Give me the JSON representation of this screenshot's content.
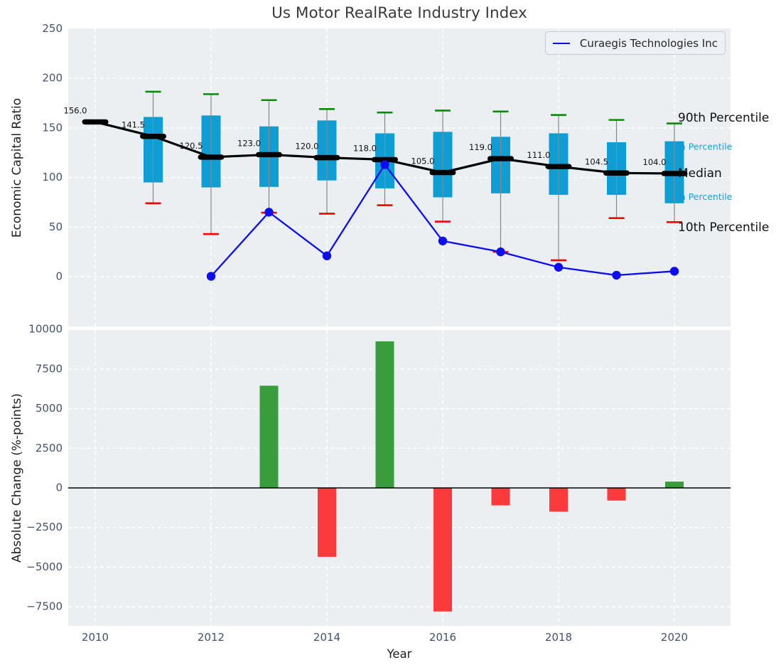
{
  "figure": {
    "title": "Us Motor RealRate Industry Index",
    "background": "#ffffff",
    "plot_background": "#eceff1"
  },
  "colors": {
    "box_fill": "#0f9ed3",
    "whisker": "#888888",
    "cap_top": "#0c8a0c",
    "cap_bottom": "#f80000",
    "median": "#000000",
    "company_line": "#0d0df0",
    "gridline": "#ffffff",
    "tick_label": "#44536b",
    "bar_positive": "#3a9d3b",
    "bar_negative": "#fb3b3b",
    "zero_line": "#000000",
    "percentile_label_small": "#18a0d8",
    "percentile_label_large": "#111111"
  },
  "legend": {
    "label": "Curaegis Technologies Inc"
  },
  "chart_data": [
    {
      "type": "box",
      "title": "Us Motor RealRate Industry Index",
      "ylabel": "Economic Capital Ratio",
      "ylim": [
        -50,
        250
      ],
      "yticks": [
        0,
        50,
        100,
        150,
        200,
        250
      ],
      "grid": true,
      "legend_position": "upper right",
      "years": [
        2010,
        2011,
        2012,
        2013,
        2014,
        2015,
        2016,
        2017,
        2018,
        2019,
        2020
      ],
      "median": [
        156.0,
        141.5,
        120.5,
        123.0,
        120.0,
        118.0,
        105.0,
        119.0,
        111.0,
        104.5,
        104.0
      ],
      "median_labels": [
        "156.0",
        "141.5",
        "120.5",
        "123.0",
        "120.0",
        "118.0",
        "105.0",
        "119.0",
        "111.0",
        "104.5",
        "104.0"
      ],
      "p90": [
        null,
        186.5,
        184.0,
        178.0,
        169.0,
        165.5,
        167.5,
        166.5,
        163.0,
        158.0,
        154.5
      ],
      "p75": [
        null,
        161.0,
        162.5,
        151.5,
        157.5,
        144.5,
        146.0,
        141.0,
        144.5,
        135.5,
        136.5
      ],
      "p25": [
        null,
        95.0,
        90.0,
        90.5,
        97.0,
        89.0,
        80.0,
        84.0,
        82.5,
        82.5,
        74.0
      ],
      "p10": [
        null,
        74.0,
        43.0,
        64.5,
        63.5,
        72.0,
        55.5,
        25.0,
        16.5,
        59.0,
        55.0
      ],
      "series": [
        {
          "name": "Curaegis Technologies Inc",
          "x": [
            2012,
            2013,
            2014,
            2015,
            2016,
            2017,
            2018,
            2019,
            2020
          ],
          "y": [
            0.4,
            65.0,
            21.0,
            113.0,
            36.0,
            25.0,
            9.5,
            1.5,
            5.5
          ]
        }
      ],
      "percentile_labels": [
        {
          "text": "90th Percentile",
          "size": "large",
          "anchor_value": 160.0
        },
        {
          "text": "75th Percentile",
          "size": "small",
          "anchor_value": 130.5
        },
        {
          "text": "Median",
          "size": "large",
          "anchor_value": 104.0
        },
        {
          "text": "25th Percentile",
          "size": "small",
          "anchor_value": 79.8
        },
        {
          "text": "10th Percentile",
          "size": "large",
          "anchor_value": 49.5
        }
      ]
    },
    {
      "type": "bar",
      "ylabel": "Absolute Change (%-points)",
      "xlabel": "Year",
      "ylim": [
        -8700,
        10000
      ],
      "yticks": [
        10000,
        7500,
        5000,
        2500,
        0,
        -2500,
        -5000,
        -7500
      ],
      "xticks": [
        2010,
        2012,
        2014,
        2016,
        2018,
        2020
      ],
      "x": [
        2013,
        2014,
        2015,
        2016,
        2017,
        2018,
        2019,
        2020
      ],
      "values": [
        6450,
        -4350,
        9250,
        -7800,
        -1100,
        -1500,
        -800,
        400
      ]
    }
  ]
}
